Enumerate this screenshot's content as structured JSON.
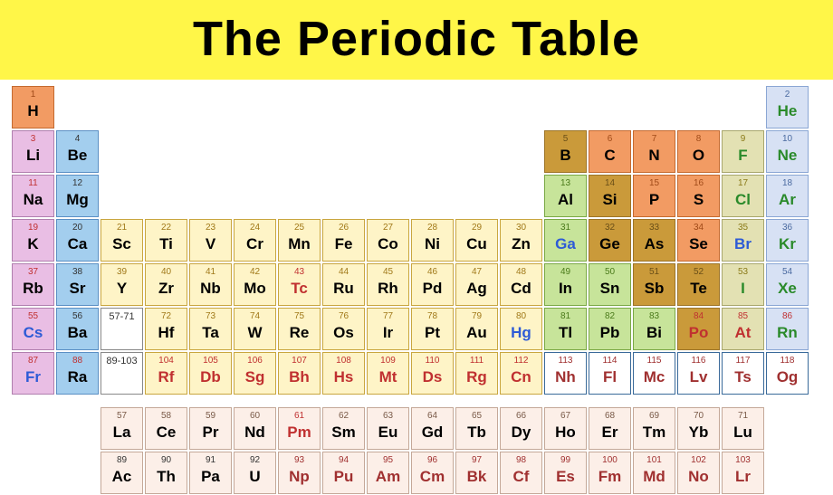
{
  "title": "The Periodic Table",
  "title_bg": "#fff648",
  "title_fontsize": 54,
  "colors": {
    "alkali": {
      "bg": "#e9bee4",
      "border": "#b07fae",
      "numText": "#c03030",
      "symText": "#000"
    },
    "alkaline": {
      "bg": "#a3ceee",
      "border": "#5a8fc4",
      "numText": "#333",
      "symText": "#000"
    },
    "transition": {
      "bg": "#fef4c7",
      "border": "#c9a63f",
      "numText": "#a07818",
      "symText": "#000"
    },
    "posttrans": {
      "bg": "#c7e49a",
      "border": "#7aa845",
      "numText": "#4a7a1a",
      "symText": "#000"
    },
    "metalloid": {
      "bg": "#ca9a3a",
      "border": "#9c7428",
      "numText": "#6a4f18",
      "symText": "#000"
    },
    "nonmetal": {
      "bg": "#f29b63",
      "border": "#c46a30",
      "numText": "#a04a18",
      "symText": "#000"
    },
    "halogen": {
      "bg": "#e3e1b3",
      "border": "#a8a66c",
      "numText": "#8a7a18",
      "symText": "#2a8a2a"
    },
    "noble": {
      "bg": "#d7e1f4",
      "border": "#8aa6d4",
      "numText": "#4a6aa0",
      "symText": "#2a8a2a"
    },
    "lanth": {
      "bg": "#fcefe8",
      "border": "#c4a898",
      "numText": "#7a5a48",
      "symText": "#000"
    },
    "act": {
      "bg": "#fcefe8",
      "border": "#c4a898",
      "numText": "#a03030",
      "symText": "#a03030"
    },
    "unknown": {
      "bg": "#ffffff",
      "border": "#3a6a9a",
      "numText": "#a03030",
      "symText": "#a03030"
    },
    "range": {
      "bg": "#ffffff",
      "border": "#888",
      "numText": "#333",
      "symText": "#000"
    },
    "blueText": "#2d5bd6"
  },
  "elements": [
    {
      "n": "1",
      "s": "H",
      "r": 1,
      "c": 1,
      "cat": "nonmetal"
    },
    {
      "n": "2",
      "s": "He",
      "r": 1,
      "c": 18,
      "cat": "noble"
    },
    {
      "n": "3",
      "s": "Li",
      "r": 2,
      "c": 1,
      "cat": "alkali"
    },
    {
      "n": "4",
      "s": "Be",
      "r": 2,
      "c": 2,
      "cat": "alkaline"
    },
    {
      "n": "5",
      "s": "B",
      "r": 2,
      "c": 13,
      "cat": "metalloid"
    },
    {
      "n": "6",
      "s": "C",
      "r": 2,
      "c": 14,
      "cat": "nonmetal"
    },
    {
      "n": "7",
      "s": "N",
      "r": 2,
      "c": 15,
      "cat": "nonmetal"
    },
    {
      "n": "8",
      "s": "O",
      "r": 2,
      "c": 16,
      "cat": "nonmetal"
    },
    {
      "n": "9",
      "s": "F",
      "r": 2,
      "c": 17,
      "cat": "halogen"
    },
    {
      "n": "10",
      "s": "Ne",
      "r": 2,
      "c": 18,
      "cat": "noble"
    },
    {
      "n": "11",
      "s": "Na",
      "r": 3,
      "c": 1,
      "cat": "alkali"
    },
    {
      "n": "12",
      "s": "Mg",
      "r": 3,
      "c": 2,
      "cat": "alkaline"
    },
    {
      "n": "13",
      "s": "Al",
      "r": 3,
      "c": 13,
      "cat": "posttrans"
    },
    {
      "n": "14",
      "s": "Si",
      "r": 3,
      "c": 14,
      "cat": "metalloid"
    },
    {
      "n": "15",
      "s": "P",
      "r": 3,
      "c": 15,
      "cat": "nonmetal"
    },
    {
      "n": "16",
      "s": "S",
      "r": 3,
      "c": 16,
      "cat": "nonmetal"
    },
    {
      "n": "17",
      "s": "Cl",
      "r": 3,
      "c": 17,
      "cat": "halogen"
    },
    {
      "n": "18",
      "s": "Ar",
      "r": 3,
      "c": 18,
      "cat": "noble"
    },
    {
      "n": "19",
      "s": "K",
      "r": 4,
      "c": 1,
      "cat": "alkali"
    },
    {
      "n": "20",
      "s": "Ca",
      "r": 4,
      "c": 2,
      "cat": "alkaline"
    },
    {
      "n": "21",
      "s": "Sc",
      "r": 4,
      "c": 3,
      "cat": "transition"
    },
    {
      "n": "22",
      "s": "Ti",
      "r": 4,
      "c": 4,
      "cat": "transition"
    },
    {
      "n": "23",
      "s": "V",
      "r": 4,
      "c": 5,
      "cat": "transition"
    },
    {
      "n": "24",
      "s": "Cr",
      "r": 4,
      "c": 6,
      "cat": "transition"
    },
    {
      "n": "25",
      "s": "Mn",
      "r": 4,
      "c": 7,
      "cat": "transition"
    },
    {
      "n": "26",
      "s": "Fe",
      "r": 4,
      "c": 8,
      "cat": "transition"
    },
    {
      "n": "27",
      "s": "Co",
      "r": 4,
      "c": 9,
      "cat": "transition"
    },
    {
      "n": "28",
      "s": "Ni",
      "r": 4,
      "c": 10,
      "cat": "transition"
    },
    {
      "n": "29",
      "s": "Cu",
      "r": 4,
      "c": 11,
      "cat": "transition"
    },
    {
      "n": "30",
      "s": "Zn",
      "r": 4,
      "c": 12,
      "cat": "transition"
    },
    {
      "n": "31",
      "s": "Ga",
      "r": 4,
      "c": 13,
      "cat": "posttrans",
      "symBlue": true
    },
    {
      "n": "32",
      "s": "Ge",
      "r": 4,
      "c": 14,
      "cat": "metalloid"
    },
    {
      "n": "33",
      "s": "As",
      "r": 4,
      "c": 15,
      "cat": "metalloid"
    },
    {
      "n": "34",
      "s": "Se",
      "r": 4,
      "c": 16,
      "cat": "nonmetal"
    },
    {
      "n": "35",
      "s": "Br",
      "r": 4,
      "c": 17,
      "cat": "halogen",
      "symBlue": true
    },
    {
      "n": "36",
      "s": "Kr",
      "r": 4,
      "c": 18,
      "cat": "noble"
    },
    {
      "n": "37",
      "s": "Rb",
      "r": 5,
      "c": 1,
      "cat": "alkali"
    },
    {
      "n": "38",
      "s": "Sr",
      "r": 5,
      "c": 2,
      "cat": "alkaline"
    },
    {
      "n": "39",
      "s": "Y",
      "r": 5,
      "c": 3,
      "cat": "transition"
    },
    {
      "n": "40",
      "s": "Zr",
      "r": 5,
      "c": 4,
      "cat": "transition"
    },
    {
      "n": "41",
      "s": "Nb",
      "r": 5,
      "c": 5,
      "cat": "transition"
    },
    {
      "n": "42",
      "s": "Mo",
      "r": 5,
      "c": 6,
      "cat": "transition"
    },
    {
      "n": "43",
      "s": "Tc",
      "r": 5,
      "c": 7,
      "cat": "transition",
      "numRed": true,
      "symRed": true
    },
    {
      "n": "44",
      "s": "Ru",
      "r": 5,
      "c": 8,
      "cat": "transition"
    },
    {
      "n": "45",
      "s": "Rh",
      "r": 5,
      "c": 9,
      "cat": "transition"
    },
    {
      "n": "46",
      "s": "Pd",
      "r": 5,
      "c": 10,
      "cat": "transition"
    },
    {
      "n": "47",
      "s": "Ag",
      "r": 5,
      "c": 11,
      "cat": "transition"
    },
    {
      "n": "48",
      "s": "Cd",
      "r": 5,
      "c": 12,
      "cat": "transition"
    },
    {
      "n": "49",
      "s": "In",
      "r": 5,
      "c": 13,
      "cat": "posttrans"
    },
    {
      "n": "50",
      "s": "Sn",
      "r": 5,
      "c": 14,
      "cat": "posttrans"
    },
    {
      "n": "51",
      "s": "Sb",
      "r": 5,
      "c": 15,
      "cat": "metalloid"
    },
    {
      "n": "52",
      "s": "Te",
      "r": 5,
      "c": 16,
      "cat": "metalloid"
    },
    {
      "n": "53",
      "s": "I",
      "r": 5,
      "c": 17,
      "cat": "halogen"
    },
    {
      "n": "54",
      "s": "Xe",
      "r": 5,
      "c": 18,
      "cat": "noble"
    },
    {
      "n": "55",
      "s": "Cs",
      "r": 6,
      "c": 1,
      "cat": "alkali",
      "symBlue": true
    },
    {
      "n": "56",
      "s": "Ba",
      "r": 6,
      "c": 2,
      "cat": "alkaline"
    },
    {
      "n": "57-71",
      "s": "",
      "r": 6,
      "c": 3,
      "cat": "range"
    },
    {
      "n": "72",
      "s": "Hf",
      "r": 6,
      "c": 4,
      "cat": "transition"
    },
    {
      "n": "73",
      "s": "Ta",
      "r": 6,
      "c": 5,
      "cat": "transition"
    },
    {
      "n": "74",
      "s": "W",
      "r": 6,
      "c": 6,
      "cat": "transition"
    },
    {
      "n": "75",
      "s": "Re",
      "r": 6,
      "c": 7,
      "cat": "transition"
    },
    {
      "n": "76",
      "s": "Os",
      "r": 6,
      "c": 8,
      "cat": "transition"
    },
    {
      "n": "77",
      "s": "Ir",
      "r": 6,
      "c": 9,
      "cat": "transition"
    },
    {
      "n": "78",
      "s": "Pt",
      "r": 6,
      "c": 10,
      "cat": "transition"
    },
    {
      "n": "79",
      "s": "Au",
      "r": 6,
      "c": 11,
      "cat": "transition"
    },
    {
      "n": "80",
      "s": "Hg",
      "r": 6,
      "c": 12,
      "cat": "transition",
      "symBlue": true
    },
    {
      "n": "81",
      "s": "Tl",
      "r": 6,
      "c": 13,
      "cat": "posttrans"
    },
    {
      "n": "82",
      "s": "Pb",
      "r": 6,
      "c": 14,
      "cat": "posttrans"
    },
    {
      "n": "83",
      "s": "Bi",
      "r": 6,
      "c": 15,
      "cat": "posttrans"
    },
    {
      "n": "84",
      "s": "Po",
      "r": 6,
      "c": 16,
      "cat": "metalloid",
      "numRed": true,
      "symRed": true
    },
    {
      "n": "85",
      "s": "At",
      "r": 6,
      "c": 17,
      "cat": "halogen",
      "numRed": true,
      "symRed": true
    },
    {
      "n": "86",
      "s": "Rn",
      "r": 6,
      "c": 18,
      "cat": "noble",
      "numRed": true
    },
    {
      "n": "87",
      "s": "Fr",
      "r": 7,
      "c": 1,
      "cat": "alkali",
      "symBlue": true,
      "numRed": true
    },
    {
      "n": "88",
      "s": "Ra",
      "r": 7,
      "c": 2,
      "cat": "alkaline",
      "numRed": true
    },
    {
      "n": "89-103",
      "s": "",
      "r": 7,
      "c": 3,
      "cat": "range"
    },
    {
      "n": "104",
      "s": "Rf",
      "r": 7,
      "c": 4,
      "cat": "transition",
      "numRed": true,
      "symRed": true
    },
    {
      "n": "105",
      "s": "Db",
      "r": 7,
      "c": 5,
      "cat": "transition",
      "numRed": true,
      "symRed": true
    },
    {
      "n": "106",
      "s": "Sg",
      "r": 7,
      "c": 6,
      "cat": "transition",
      "numRed": true,
      "symRed": true
    },
    {
      "n": "107",
      "s": "Bh",
      "r": 7,
      "c": 7,
      "cat": "transition",
      "numRed": true,
      "symRed": true
    },
    {
      "n": "108",
      "s": "Hs",
      "r": 7,
      "c": 8,
      "cat": "transition",
      "numRed": true,
      "symRed": true
    },
    {
      "n": "109",
      "s": "Mt",
      "r": 7,
      "c": 9,
      "cat": "transition",
      "numRed": true,
      "symRed": true
    },
    {
      "n": "110",
      "s": "Ds",
      "r": 7,
      "c": 10,
      "cat": "transition",
      "numRed": true,
      "symRed": true
    },
    {
      "n": "111",
      "s": "Rg",
      "r": 7,
      "c": 11,
      "cat": "transition",
      "numRed": true,
      "symRed": true
    },
    {
      "n": "112",
      "s": "Cn",
      "r": 7,
      "c": 12,
      "cat": "transition",
      "numRed": true,
      "symRed": true
    },
    {
      "n": "113",
      "s": "Nh",
      "r": 7,
      "c": 13,
      "cat": "unknown"
    },
    {
      "n": "114",
      "s": "Fl",
      "r": 7,
      "c": 14,
      "cat": "unknown"
    },
    {
      "n": "115",
      "s": "Mc",
      "r": 7,
      "c": 15,
      "cat": "unknown"
    },
    {
      "n": "116",
      "s": "Lv",
      "r": 7,
      "c": 16,
      "cat": "unknown"
    },
    {
      "n": "117",
      "s": "Ts",
      "r": 7,
      "c": 17,
      "cat": "unknown"
    },
    {
      "n": "118",
      "s": "Og",
      "r": 7,
      "c": 18,
      "cat": "unknown"
    },
    {
      "n": "57",
      "s": "La",
      "r": 9,
      "c": 3,
      "cat": "lanth"
    },
    {
      "n": "58",
      "s": "Ce",
      "r": 9,
      "c": 4,
      "cat": "lanth"
    },
    {
      "n": "59",
      "s": "Pr",
      "r": 9,
      "c": 5,
      "cat": "lanth"
    },
    {
      "n": "60",
      "s": "Nd",
      "r": 9,
      "c": 6,
      "cat": "lanth"
    },
    {
      "n": "61",
      "s": "Pm",
      "r": 9,
      "c": 7,
      "cat": "lanth",
      "numRed": true,
      "symRed": true
    },
    {
      "n": "62",
      "s": "Sm",
      "r": 9,
      "c": 8,
      "cat": "lanth"
    },
    {
      "n": "63",
      "s": "Eu",
      "r": 9,
      "c": 9,
      "cat": "lanth"
    },
    {
      "n": "64",
      "s": "Gd",
      "r": 9,
      "c": 10,
      "cat": "lanth"
    },
    {
      "n": "65",
      "s": "Tb",
      "r": 9,
      "c": 11,
      "cat": "lanth"
    },
    {
      "n": "66",
      "s": "Dy",
      "r": 9,
      "c": 12,
      "cat": "lanth"
    },
    {
      "n": "67",
      "s": "Ho",
      "r": 9,
      "c": 13,
      "cat": "lanth"
    },
    {
      "n": "68",
      "s": "Er",
      "r": 9,
      "c": 14,
      "cat": "lanth"
    },
    {
      "n": "69",
      "s": "Tm",
      "r": 9,
      "c": 15,
      "cat": "lanth"
    },
    {
      "n": "70",
      "s": "Yb",
      "r": 9,
      "c": 16,
      "cat": "lanth"
    },
    {
      "n": "71",
      "s": "Lu",
      "r": 9,
      "c": 17,
      "cat": "lanth"
    },
    {
      "n": "89",
      "s": "Ac",
      "r": 10,
      "c": 3,
      "cat": "act",
      "numBlack": true,
      "symBlack": true
    },
    {
      "n": "90",
      "s": "Th",
      "r": 10,
      "c": 4,
      "cat": "act",
      "numBlack": true,
      "symBlack": true
    },
    {
      "n": "91",
      "s": "Pa",
      "r": 10,
      "c": 5,
      "cat": "act",
      "numBlack": true,
      "symBlack": true
    },
    {
      "n": "92",
      "s": "U",
      "r": 10,
      "c": 6,
      "cat": "act",
      "numBlack": true,
      "symBlack": true
    },
    {
      "n": "93",
      "s": "Np",
      "r": 10,
      "c": 7,
      "cat": "act"
    },
    {
      "n": "94",
      "s": "Pu",
      "r": 10,
      "c": 8,
      "cat": "act"
    },
    {
      "n": "95",
      "s": "Am",
      "r": 10,
      "c": 9,
      "cat": "act"
    },
    {
      "n": "96",
      "s": "Cm",
      "r": 10,
      "c": 10,
      "cat": "act"
    },
    {
      "n": "97",
      "s": "Bk",
      "r": 10,
      "c": 11,
      "cat": "act"
    },
    {
      "n": "98",
      "s": "Cf",
      "r": 10,
      "c": 12,
      "cat": "act"
    },
    {
      "n": "99",
      "s": "Es",
      "r": 10,
      "c": 13,
      "cat": "act"
    },
    {
      "n": "100",
      "s": "Fm",
      "r": 10,
      "c": 14,
      "cat": "act"
    },
    {
      "n": "101",
      "s": "Md",
      "r": 10,
      "c": 15,
      "cat": "act"
    },
    {
      "n": "102",
      "s": "No",
      "r": 10,
      "c": 16,
      "cat": "act"
    },
    {
      "n": "103",
      "s": "Lr",
      "r": 10,
      "c": 17,
      "cat": "act"
    }
  ]
}
